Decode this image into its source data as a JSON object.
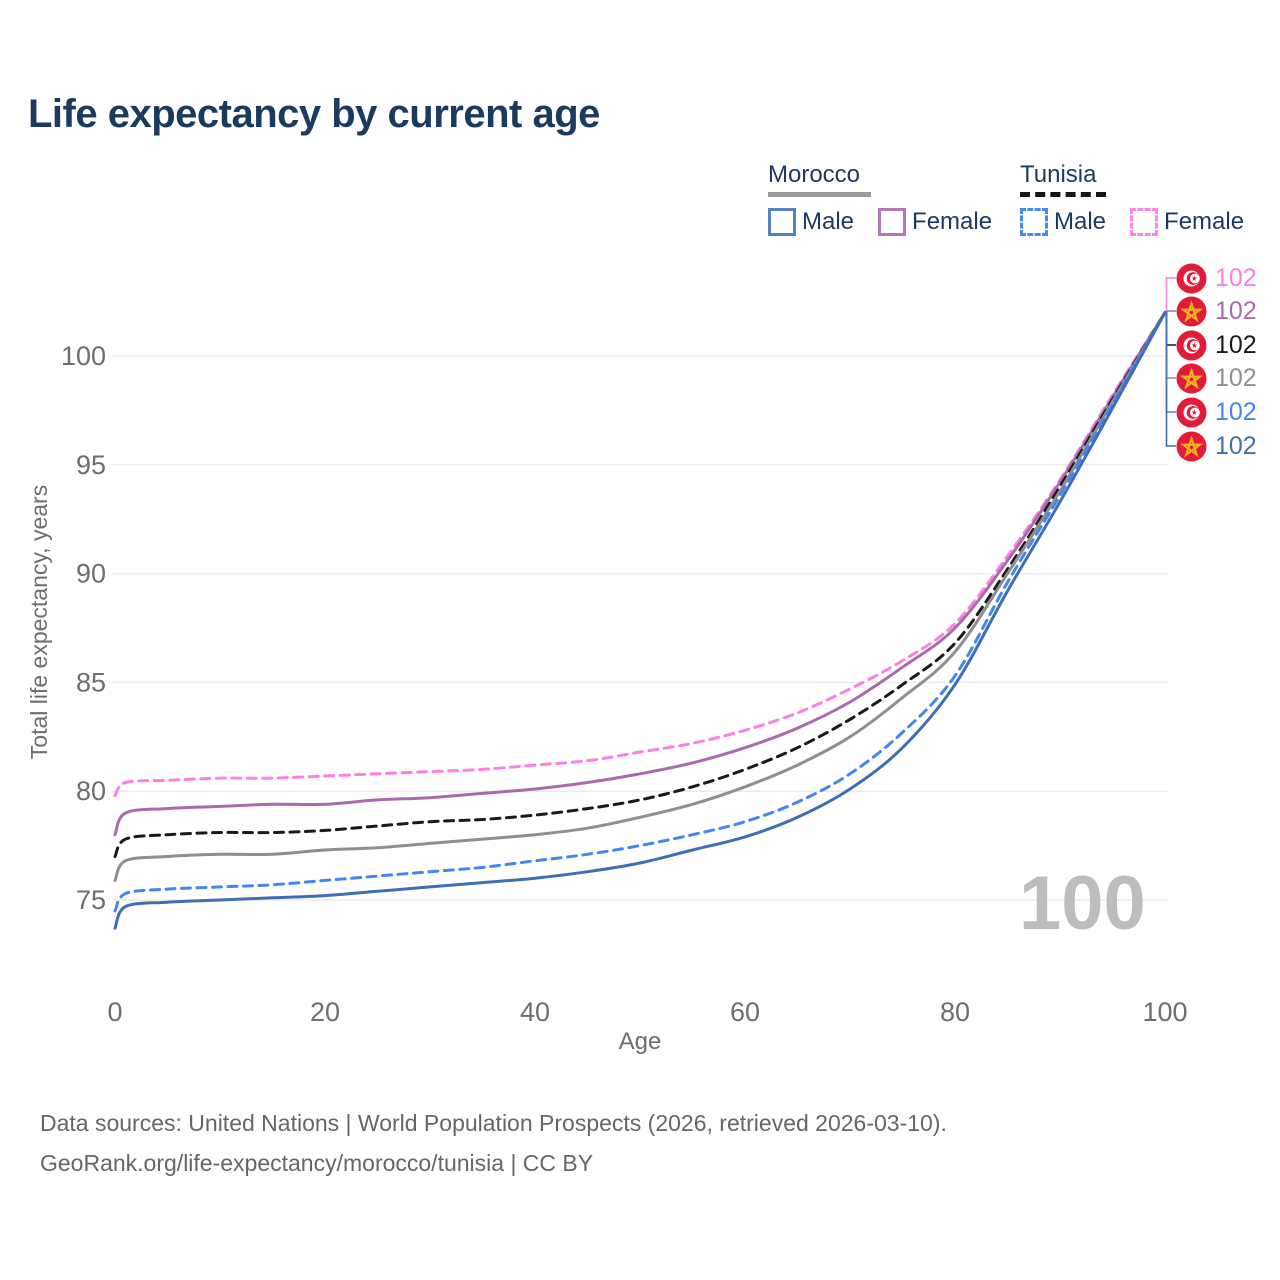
{
  "title": "Life expectancy by current age",
  "legend": {
    "groups": [
      {
        "label": "Morocco",
        "line_style": "solid",
        "underline_color": "#9b9b9b",
        "items": [
          {
            "label": "Male",
            "color": "#5580c2",
            "dash": false
          },
          {
            "label": "Female",
            "color": "#b277b4",
            "dash": false
          }
        ]
      },
      {
        "label": "Tunisia",
        "line_style": "dashed",
        "underline_color": "#161616",
        "items": [
          {
            "label": "Male",
            "color": "#4589f0",
            "dash": true
          },
          {
            "label": "Female",
            "color": "#fb86e4",
            "dash": true
          }
        ]
      }
    ]
  },
  "chart_data": {
    "type": "line",
    "title": "Life expectancy by current age",
    "xlabel": "Age",
    "ylabel": "Total life expectancy, years",
    "xlim": [
      0,
      100
    ],
    "ylim": [
      72.5,
      103
    ],
    "xticks": [
      0,
      20,
      40,
      60,
      80,
      100
    ],
    "yticks": [
      75,
      80,
      85,
      90,
      95,
      100
    ],
    "grid": "horizontal",
    "gridline_color": "#e8e8e8",
    "legend_position": "top-right",
    "x": [
      0,
      1,
      5,
      10,
      15,
      20,
      25,
      30,
      35,
      40,
      45,
      50,
      55,
      60,
      65,
      70,
      75,
      80,
      85,
      90,
      95,
      100
    ],
    "series": [
      {
        "name": "Tunisia — Female",
        "country": "Tunisia",
        "sex": "female",
        "line_style": "dashed",
        "color": "#fb80e3",
        "flag": "tunisia",
        "end_label": "102",
        "values": [
          79.8,
          80.4,
          80.5,
          80.6,
          80.6,
          80.7,
          80.8,
          80.9,
          81.0,
          81.2,
          81.4,
          81.8,
          82.2,
          82.8,
          83.6,
          84.7,
          86.0,
          87.7,
          90.8,
          94.3,
          98.2,
          102
        ]
      },
      {
        "name": "Morocco — Female",
        "country": "Morocco",
        "sex": "female",
        "line_style": "solid",
        "color": "#aa6bac",
        "flag": "morocco",
        "end_label": "102",
        "values": [
          78.0,
          79.0,
          79.2,
          79.3,
          79.4,
          79.4,
          79.6,
          79.7,
          79.9,
          80.1,
          80.4,
          80.8,
          81.3,
          82.0,
          82.9,
          84.1,
          85.7,
          87.5,
          90.6,
          94.2,
          98.1,
          102
        ]
      },
      {
        "name": "Tunisia — Both sexes",
        "country": "Tunisia",
        "sex": "both",
        "line_style": "dashed",
        "color": "#1a1a1a",
        "flag": "tunisia",
        "end_label": "102",
        "values": [
          77.0,
          77.8,
          78.0,
          78.1,
          78.1,
          78.2,
          78.4,
          78.6,
          78.7,
          78.9,
          79.2,
          79.6,
          80.2,
          81.0,
          82.0,
          83.3,
          84.9,
          86.8,
          90.2,
          94.0,
          98.0,
          102
        ]
      },
      {
        "name": "Morocco — Both sexes",
        "country": "Morocco",
        "sex": "both",
        "line_style": "solid",
        "color": "#8f8f8f",
        "flag": "morocco",
        "end_label": "102",
        "values": [
          75.9,
          76.8,
          77.0,
          77.1,
          77.1,
          77.3,
          77.4,
          77.6,
          77.8,
          78.0,
          78.3,
          78.8,
          79.4,
          80.2,
          81.2,
          82.5,
          84.3,
          86.4,
          90.0,
          93.8,
          97.9,
          102
        ]
      },
      {
        "name": "Tunisia — Male",
        "country": "Tunisia",
        "sex": "male",
        "line_style": "dashed",
        "color": "#4287f0",
        "flag": "tunisia",
        "end_label": "102",
        "values": [
          74.5,
          75.3,
          75.5,
          75.6,
          75.7,
          75.9,
          76.1,
          76.3,
          76.5,
          76.8,
          77.1,
          77.5,
          78.0,
          78.6,
          79.5,
          80.8,
          82.7,
          85.3,
          89.6,
          93.6,
          97.8,
          102
        ]
      },
      {
        "name": "Morocco — Male",
        "country": "Morocco",
        "sex": "male",
        "line_style": "solid",
        "color": "#3e6fb5",
        "flag": "morocco",
        "end_label": "102",
        "values": [
          73.7,
          74.7,
          74.9,
          75.0,
          75.1,
          75.2,
          75.4,
          75.6,
          75.8,
          76.0,
          76.3,
          76.7,
          77.3,
          77.9,
          78.8,
          80.1,
          82.0,
          84.9,
          89.2,
          93.3,
          97.6,
          102
        ]
      }
    ]
  },
  "watermark": "100",
  "footer": {
    "line1": "Data sources: United Nations | World Population Prospects (2026, retrieved 2026-03-10).",
    "line2": "GeoRank.org/life-expectancy/morocco/tunisia | CC BY"
  }
}
